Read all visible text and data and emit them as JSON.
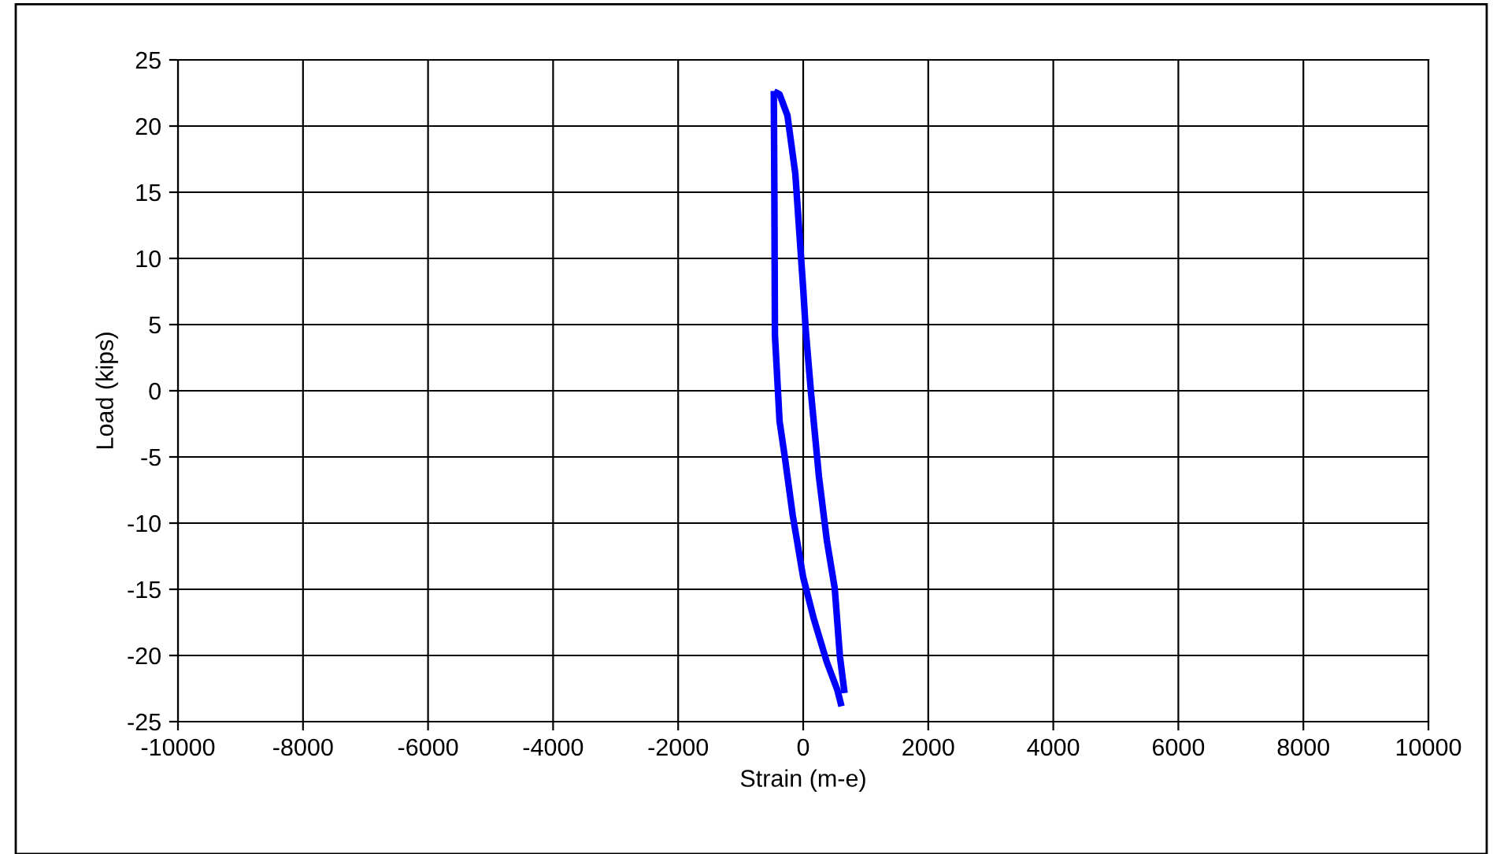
{
  "chart_data": {
    "type": "line",
    "xlabel": "Strain (m-e)",
    "ylabel": "Load (kips)",
    "xlim": [
      -10000,
      10000
    ],
    "xticks": [
      -10000,
      -8000,
      -6000,
      -4000,
      -2000,
      0,
      2000,
      4000,
      6000,
      8000,
      10000
    ],
    "ylim": [
      -25,
      25
    ],
    "yticks": [
      -25,
      -20,
      -15,
      -10,
      -5,
      0,
      5,
      10,
      15,
      20,
      25
    ],
    "grid": true,
    "legend": false,
    "marker": "none",
    "line_style": "solid",
    "series": [
      {
        "color": "#0000ff",
        "x": [
          -470,
          -461,
          -452,
          -378,
          -294,
          -168,
          0,
          168,
          378,
          546,
          600
        ],
        "values": [
          22.4,
          15,
          4.2,
          -2.3,
          -5,
          -9.4,
          -14.1,
          -17.2,
          -20.5,
          -22.6,
          -23.6
        ]
      },
      {
        "color": "#0000ff",
        "x": [
          -420,
          -378,
          -252,
          -126,
          0,
          42,
          126,
          252,
          378,
          504,
          588,
          655
        ],
        "values": [
          22.5,
          22.4,
          20.8,
          16.4,
          7.7,
          4.5,
          -0.2,
          -6.5,
          -11.3,
          -14.9,
          -20.1,
          -22.6
        ]
      }
    ]
  }
}
